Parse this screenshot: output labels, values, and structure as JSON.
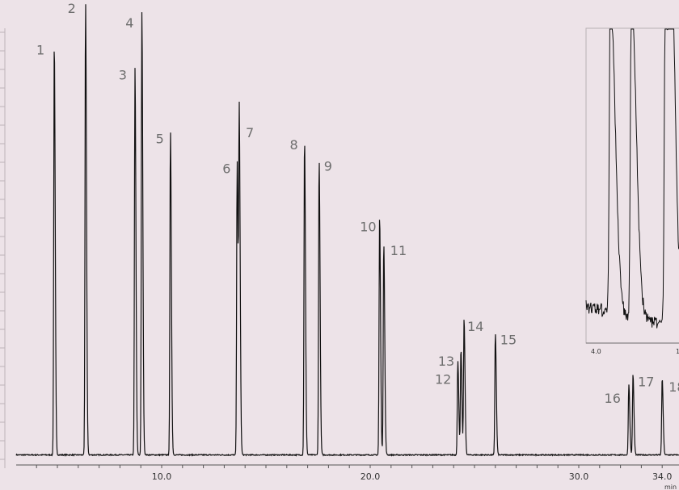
{
  "chart_data": {
    "type": "line",
    "title": "",
    "xlabel": "min",
    "ylabel": "",
    "xlim": [
      3,
      36
    ],
    "ylim": [
      0,
      100
    ],
    "x_ticks": [
      "10.0",
      "20.0",
      "30.0",
      "34.0"
    ],
    "baseline": 1.5,
    "series": [
      {
        "peaks": [
          {
            "label": "1",
            "rt": 4.85,
            "height": 90.5
          },
          {
            "label": "2",
            "rt": 6.35,
            "height": 100
          },
          {
            "label": "3",
            "rt": 8.72,
            "height": 85
          },
          {
            "label": "4",
            "rt": 9.05,
            "height": 97.2
          },
          {
            "label": "5",
            "rt": 10.42,
            "height": 71.4
          },
          {
            "label": "6",
            "rt": 13.62,
            "height": 64.8
          },
          {
            "label": "7",
            "rt": 13.72,
            "height": 72.3
          },
          {
            "label": "8",
            "rt": 16.85,
            "height": 69.7
          },
          {
            "label": "9",
            "rt": 17.55,
            "height": 65.3
          },
          {
            "label": "10",
            "rt": 20.45,
            "height": 52.4
          },
          {
            "label": "11",
            "rt": 20.65,
            "height": 46.8
          },
          {
            "label": "12",
            "rt": 24.2,
            "height": 20.7
          },
          {
            "label": "13",
            "rt": 24.35,
            "height": 23.2
          },
          {
            "label": "14",
            "rt": 24.5,
            "height": 29.8
          },
          {
            "label": "15",
            "rt": 26.0,
            "height": 26.9
          },
          {
            "label": "16",
            "rt": 32.4,
            "height": 15.6
          },
          {
            "label": "17",
            "rt": 32.6,
            "height": 17.6
          },
          {
            "label": "18",
            "rt": 34.0,
            "height": 16.8
          }
        ]
      }
    ],
    "inset": {
      "x_ticks": [
        "4.0",
        "1"
      ]
    }
  }
}
